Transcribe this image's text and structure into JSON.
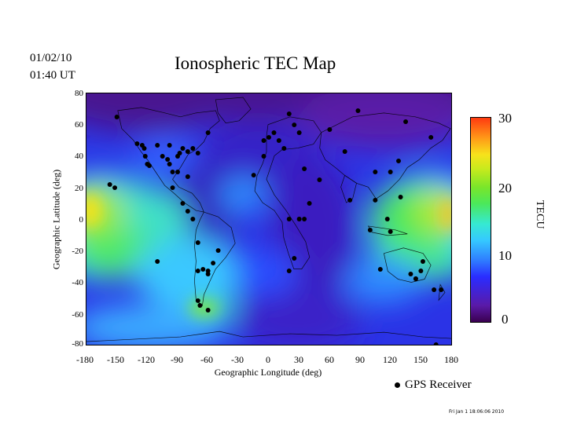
{
  "header": {
    "date": "01/02/10",
    "time": "01:40 UT",
    "title": "Ionospheric TEC Map"
  },
  "axes": {
    "xlabel": "Geographic Longitude (deg)",
    "ylabel": "Geographic Latitude (deg)",
    "xticks": [
      "-180",
      "-150",
      "-120",
      "-90",
      "-60",
      "-30",
      "0",
      "30",
      "60",
      "90",
      "120",
      "150",
      "180"
    ],
    "yticks": [
      "80",
      "60",
      "40",
      "20",
      "0",
      "-20",
      "-40",
      "-60",
      "-80"
    ],
    "xlim": [
      -180,
      180
    ],
    "ylim": [
      -80,
      80
    ]
  },
  "colorbar": {
    "label": "TECU",
    "ticks": [
      "30",
      "20",
      "10",
      "0"
    ],
    "range": [
      0,
      30
    ],
    "colormap": "rainbow (purple-blue-cyan-green-yellow-red)"
  },
  "legend": {
    "label": "GPS Receiver",
    "marker": "filled-black-circle"
  },
  "footer": {
    "timestamp": "Fri Jan  1 18:06:06 2010"
  },
  "chart_data": {
    "type": "heatmap",
    "title": "Ionospheric TEC Map",
    "xlabel": "Geographic Longitude (deg)",
    "ylabel": "Geographic Latitude (deg)",
    "xlim": [
      -180,
      180
    ],
    "ylim": [
      -80,
      80
    ],
    "receivers": [
      [
        -150,
        65
      ],
      [
        -130,
        48
      ],
      [
        -125,
        47
      ],
      [
        -123,
        45
      ],
      [
        -122,
        40
      ],
      [
        -120,
        35
      ],
      [
        -118,
        34
      ],
      [
        -110,
        47
      ],
      [
        -105,
        40
      ],
      [
        -100,
        38
      ],
      [
        -95,
        30
      ],
      [
        -98,
        35
      ],
      [
        -90,
        40
      ],
      [
        -88,
        42
      ],
      [
        -85,
        45
      ],
      [
        -80,
        43
      ],
      [
        -75,
        45
      ],
      [
        -70,
        42
      ],
      [
        -60,
        55
      ],
      [
        -98,
        47
      ],
      [
        -90,
        30
      ],
      [
        -80,
        27
      ],
      [
        -95,
        20
      ],
      [
        -157,
        22
      ],
      [
        -152,
        20
      ],
      [
        -85,
        10
      ],
      [
        -80,
        5
      ],
      [
        -75,
        0
      ],
      [
        -70,
        -15
      ],
      [
        -110,
        -27
      ],
      [
        -70,
        -33
      ],
      [
        -65,
        -32
      ],
      [
        -60,
        -35
      ],
      [
        -55,
        -28
      ],
      [
        -50,
        -20
      ],
      [
        -60,
        -33
      ],
      [
        -70,
        -52
      ],
      [
        -68,
        -55
      ],
      [
        -60,
        -58
      ],
      [
        -15,
        28
      ],
      [
        -5,
        40
      ],
      [
        -5,
        50
      ],
      [
        0,
        52
      ],
      [
        5,
        55
      ],
      [
        10,
        50
      ],
      [
        15,
        45
      ],
      [
        25,
        60
      ],
      [
        20,
        67
      ],
      [
        30,
        55
      ],
      [
        60,
        57
      ],
      [
        75,
        43
      ],
      [
        88,
        69
      ],
      [
        135,
        62
      ],
      [
        160,
        52
      ],
      [
        128,
        37
      ],
      [
        120,
        30
      ],
      [
        105,
        30
      ],
      [
        100,
        -7
      ],
      [
        117,
        0
      ],
      [
        120,
        -8
      ],
      [
        110,
        -32
      ],
      [
        140,
        -35
      ],
      [
        145,
        -38
      ],
      [
        150,
        -33
      ],
      [
        152,
        -27
      ],
      [
        163,
        -45
      ],
      [
        130,
        14
      ],
      [
        105,
        12
      ],
      [
        80,
        12
      ],
      [
        50,
        25
      ],
      [
        35,
        32
      ],
      [
        40,
        10
      ],
      [
        30,
        0
      ],
      [
        20,
        0
      ],
      [
        20,
        -33
      ],
      [
        25,
        -25
      ],
      [
        35,
        0
      ],
      [
        145,
        -38
      ],
      [
        165,
        -80
      ],
      [
        170,
        -45
      ]
    ]
  }
}
